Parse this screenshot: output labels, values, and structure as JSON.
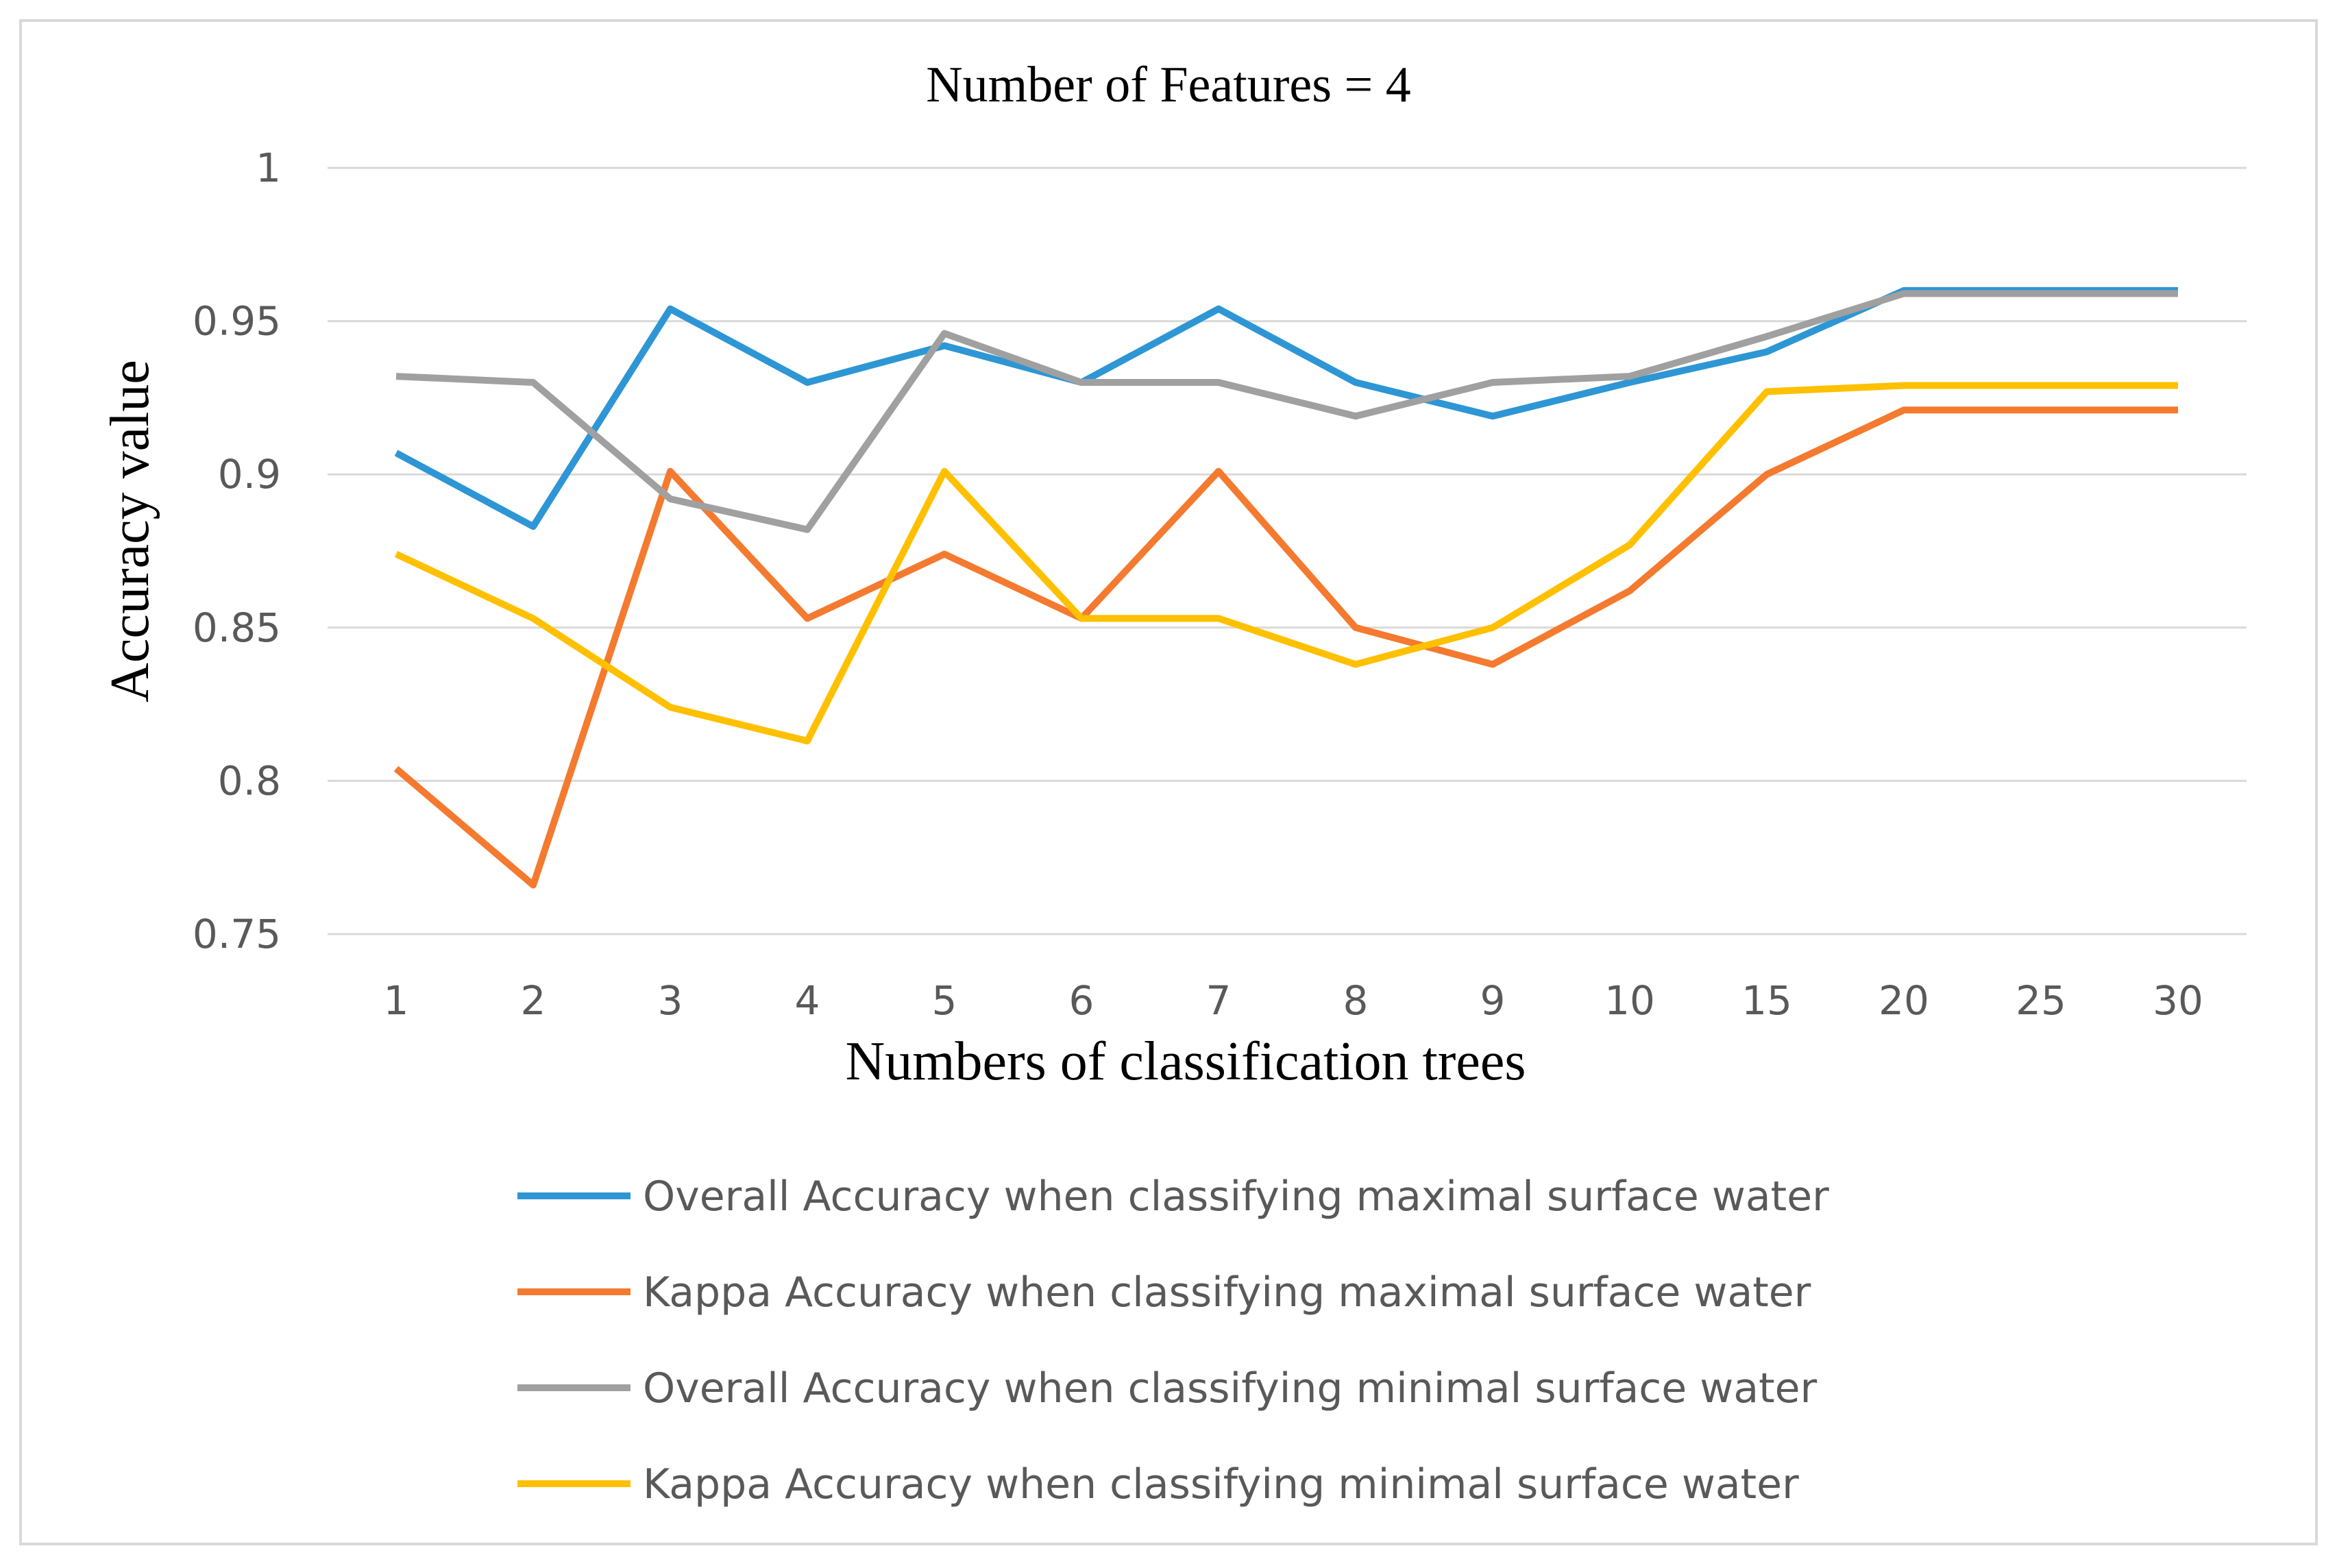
{
  "chart_data": {
    "type": "line",
    "title": "Number of Features = 4",
    "xlabel": "Numbers of classification trees",
    "ylabel": "Accuracy value",
    "categories": [
      "1",
      "2",
      "3",
      "4",
      "5",
      "6",
      "7",
      "8",
      "9",
      "10",
      "15",
      "20",
      "25",
      "30"
    ],
    "ylim": [
      0.75,
      1
    ],
    "yticks": [
      "0.75",
      "0.8",
      "0.85",
      "0.9",
      "0.95",
      "1"
    ],
    "grid": true,
    "legend_position": "bottom",
    "series": [
      {
        "name": "Overall Accuracy when classifying maximal surface water",
        "color": "#2E96D4",
        "values": [
          0.907,
          0.883,
          0.954,
          0.93,
          0.942,
          0.93,
          0.954,
          0.93,
          0.919,
          0.93,
          0.94,
          0.96,
          0.96,
          0.96
        ]
      },
      {
        "name": "Kappa Accuracy when classifying maximal surface water",
        "color": "#F47A30",
        "values": [
          0.804,
          0.766,
          0.901,
          0.853,
          0.874,
          0.853,
          0.901,
          0.85,
          0.838,
          0.862,
          0.9,
          0.921,
          0.921,
          0.921
        ]
      },
      {
        "name": "Overall Accuracy when classifying minimal surface water",
        "color": "#A0A0A0",
        "values": [
          0.932,
          0.93,
          0.892,
          0.882,
          0.946,
          0.93,
          0.93,
          0.919,
          0.93,
          0.932,
          0.945,
          0.959,
          0.959,
          0.959
        ]
      },
      {
        "name": "Kappa Accuracy when classifying minimal surface water",
        "color": "#FFC000",
        "values": [
          0.874,
          0.853,
          0.824,
          0.813,
          0.901,
          0.853,
          0.853,
          0.838,
          0.85,
          0.877,
          0.927,
          0.929,
          0.929,
          0.929
        ]
      }
    ]
  }
}
